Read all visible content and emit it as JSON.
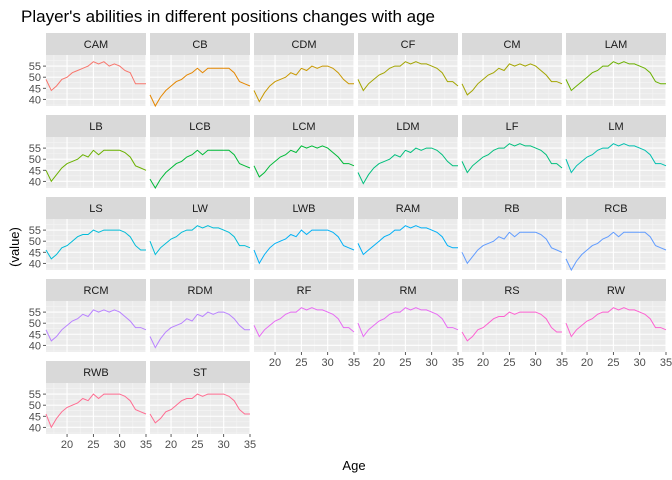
{
  "chart_data": {
    "type": "line",
    "title": "Player's abilities in different positions changes with age",
    "xlabel": "Age",
    "ylabel": "(value)",
    "xlim": [
      16,
      35
    ],
    "ylim": [
      37,
      60
    ],
    "x_ticks": [
      20,
      25,
      30,
      35
    ],
    "y_ticks": [
      40,
      45,
      50,
      55
    ],
    "grid": true,
    "legend": "none",
    "age": [
      16,
      17,
      18,
      19,
      20,
      21,
      22,
      23,
      24,
      25,
      26,
      27,
      28,
      29,
      30,
      31,
      32,
      33,
      34,
      35
    ],
    "panels": [
      {
        "name": "CAM",
        "color": "#F8766D",
        "values": [
          49,
          44,
          46,
          49,
          50,
          52,
          53,
          54,
          55,
          57,
          56,
          57,
          55,
          56,
          55,
          53,
          52,
          47,
          47,
          47
        ]
      },
      {
        "name": "CB",
        "color": "#E58700",
        "values": [
          42,
          37,
          41,
          44,
          46,
          48,
          49,
          51,
          52,
          54,
          52,
          54,
          54,
          54,
          54,
          54,
          52,
          48,
          47,
          46
        ]
      },
      {
        "name": "CDM",
        "color": "#C99800",
        "values": [
          44,
          39,
          43,
          46,
          48,
          49,
          50,
          52,
          51,
          54,
          53,
          55,
          54,
          55,
          55,
          54,
          52,
          49,
          47,
          47
        ]
      },
      {
        "name": "CF",
        "color": "#A3A500",
        "values": [
          49,
          44,
          47,
          49,
          51,
          52,
          54,
          55,
          55,
          57,
          56,
          57,
          56,
          56,
          55,
          54,
          52,
          48,
          48,
          46
        ]
      },
      {
        "name": "CM",
        "color": "#A3A500",
        "values": [
          47,
          42,
          44,
          47,
          49,
          51,
          52,
          54,
          53,
          56,
          55,
          56,
          55,
          56,
          55,
          53,
          51,
          48,
          48,
          47
        ]
      },
      {
        "name": "LAM",
        "color": "#6BB100",
        "values": [
          49,
          44,
          46,
          48,
          50,
          52,
          53,
          55,
          55,
          57,
          56,
          57,
          56,
          56,
          55,
          54,
          52,
          48,
          47,
          47
        ]
      },
      {
        "name": "LB",
        "color": "#6BB100",
        "values": [
          45,
          40,
          43,
          46,
          48,
          49,
          50,
          52,
          51,
          54,
          52,
          54,
          54,
          54,
          54,
          53,
          51,
          47,
          46,
          45
        ]
      },
      {
        "name": "LCB",
        "color": "#00BA38",
        "values": [
          41,
          37,
          41,
          44,
          46,
          48,
          49,
          51,
          52,
          54,
          52,
          54,
          54,
          54,
          54,
          54,
          52,
          48,
          47,
          46
        ]
      },
      {
        "name": "LCM",
        "color": "#00BA38",
        "values": [
          47,
          42,
          44,
          47,
          49,
          51,
          52,
          54,
          53,
          56,
          55,
          56,
          55,
          56,
          55,
          53,
          51,
          48,
          48,
          47
        ]
      },
      {
        "name": "LDM",
        "color": "#00BF7D",
        "values": [
          44,
          39,
          43,
          46,
          48,
          49,
          50,
          52,
          51,
          54,
          53,
          55,
          54,
          55,
          55,
          54,
          52,
          49,
          47,
          47
        ]
      },
      {
        "name": "LF",
        "color": "#00BF7D",
        "values": [
          49,
          44,
          47,
          49,
          51,
          52,
          54,
          55,
          55,
          57,
          56,
          57,
          56,
          56,
          55,
          54,
          52,
          48,
          48,
          46
        ]
      },
      {
        "name": "LM",
        "color": "#00C0AF",
        "values": [
          50,
          44,
          47,
          49,
          51,
          52,
          54,
          55,
          55,
          57,
          56,
          57,
          56,
          56,
          55,
          54,
          52,
          48,
          48,
          47
        ]
      },
      {
        "name": "LS",
        "color": "#00BCD8",
        "values": [
          46,
          42,
          44,
          47,
          48,
          50,
          52,
          53,
          53,
          55,
          54,
          55,
          55,
          55,
          55,
          54,
          52,
          48,
          46,
          46
        ]
      },
      {
        "name": "LW",
        "color": "#00BCD8",
        "values": [
          50,
          44,
          47,
          49,
          51,
          52,
          54,
          55,
          55,
          57,
          56,
          57,
          56,
          56,
          55,
          54,
          52,
          48,
          48,
          47
        ]
      },
      {
        "name": "LWB",
        "color": "#00B0F6",
        "values": [
          46,
          40,
          44,
          47,
          49,
          50,
          51,
          53,
          52,
          55,
          53,
          55,
          55,
          55,
          55,
          54,
          52,
          48,
          47,
          46
        ]
      },
      {
        "name": "RAM",
        "color": "#00B0F6",
        "values": [
          49,
          44,
          46,
          48,
          50,
          52,
          53,
          55,
          55,
          57,
          56,
          57,
          56,
          56,
          55,
          54,
          52,
          48,
          47,
          47
        ]
      },
      {
        "name": "RB",
        "color": "#619CFF",
        "values": [
          45,
          40,
          43,
          46,
          48,
          49,
          50,
          52,
          51,
          54,
          52,
          54,
          54,
          54,
          54,
          53,
          51,
          47,
          46,
          45
        ]
      },
      {
        "name": "RCB",
        "color": "#619CFF",
        "values": [
          42,
          37,
          41,
          44,
          46,
          48,
          49,
          51,
          52,
          54,
          52,
          54,
          54,
          54,
          54,
          54,
          52,
          48,
          47,
          46
        ]
      },
      {
        "name": "RCM",
        "color": "#B983FF",
        "values": [
          47,
          42,
          44,
          47,
          49,
          51,
          52,
          54,
          53,
          56,
          55,
          56,
          55,
          56,
          55,
          53,
          51,
          48,
          48,
          47
        ]
      },
      {
        "name": "RDM",
        "color": "#B983FF",
        "values": [
          44,
          39,
          43,
          46,
          48,
          49,
          50,
          52,
          51,
          54,
          53,
          55,
          54,
          55,
          55,
          54,
          52,
          49,
          47,
          47
        ]
      },
      {
        "name": "RF",
        "color": "#E76BF3",
        "values": [
          49,
          44,
          47,
          49,
          51,
          52,
          54,
          55,
          55,
          57,
          56,
          57,
          56,
          56,
          55,
          54,
          52,
          48,
          48,
          46
        ]
      },
      {
        "name": "RM",
        "color": "#E76BF3",
        "values": [
          50,
          44,
          47,
          49,
          51,
          52,
          54,
          55,
          55,
          57,
          56,
          57,
          56,
          56,
          55,
          54,
          52,
          48,
          48,
          47
        ]
      },
      {
        "name": "RS",
        "color": "#FD61D1",
        "values": [
          46,
          42,
          44,
          47,
          48,
          50,
          52,
          53,
          53,
          55,
          54,
          55,
          55,
          55,
          55,
          54,
          52,
          48,
          46,
          46
        ]
      },
      {
        "name": "RW",
        "color": "#FD61D1",
        "values": [
          50,
          44,
          47,
          49,
          51,
          52,
          54,
          55,
          55,
          57,
          56,
          57,
          56,
          56,
          55,
          54,
          52,
          48,
          48,
          47
        ]
      },
      {
        "name": "RWB",
        "color": "#FF6C91",
        "values": [
          46,
          40,
          44,
          47,
          49,
          50,
          51,
          53,
          52,
          55,
          53,
          55,
          55,
          55,
          55,
          54,
          52,
          48,
          47,
          46
        ]
      },
      {
        "name": "ST",
        "color": "#FF6C91",
        "values": [
          46,
          42,
          44,
          47,
          48,
          50,
          52,
          53,
          53,
          55,
          54,
          55,
          55,
          55,
          55,
          54,
          52,
          48,
          46,
          46
        ]
      }
    ]
  }
}
